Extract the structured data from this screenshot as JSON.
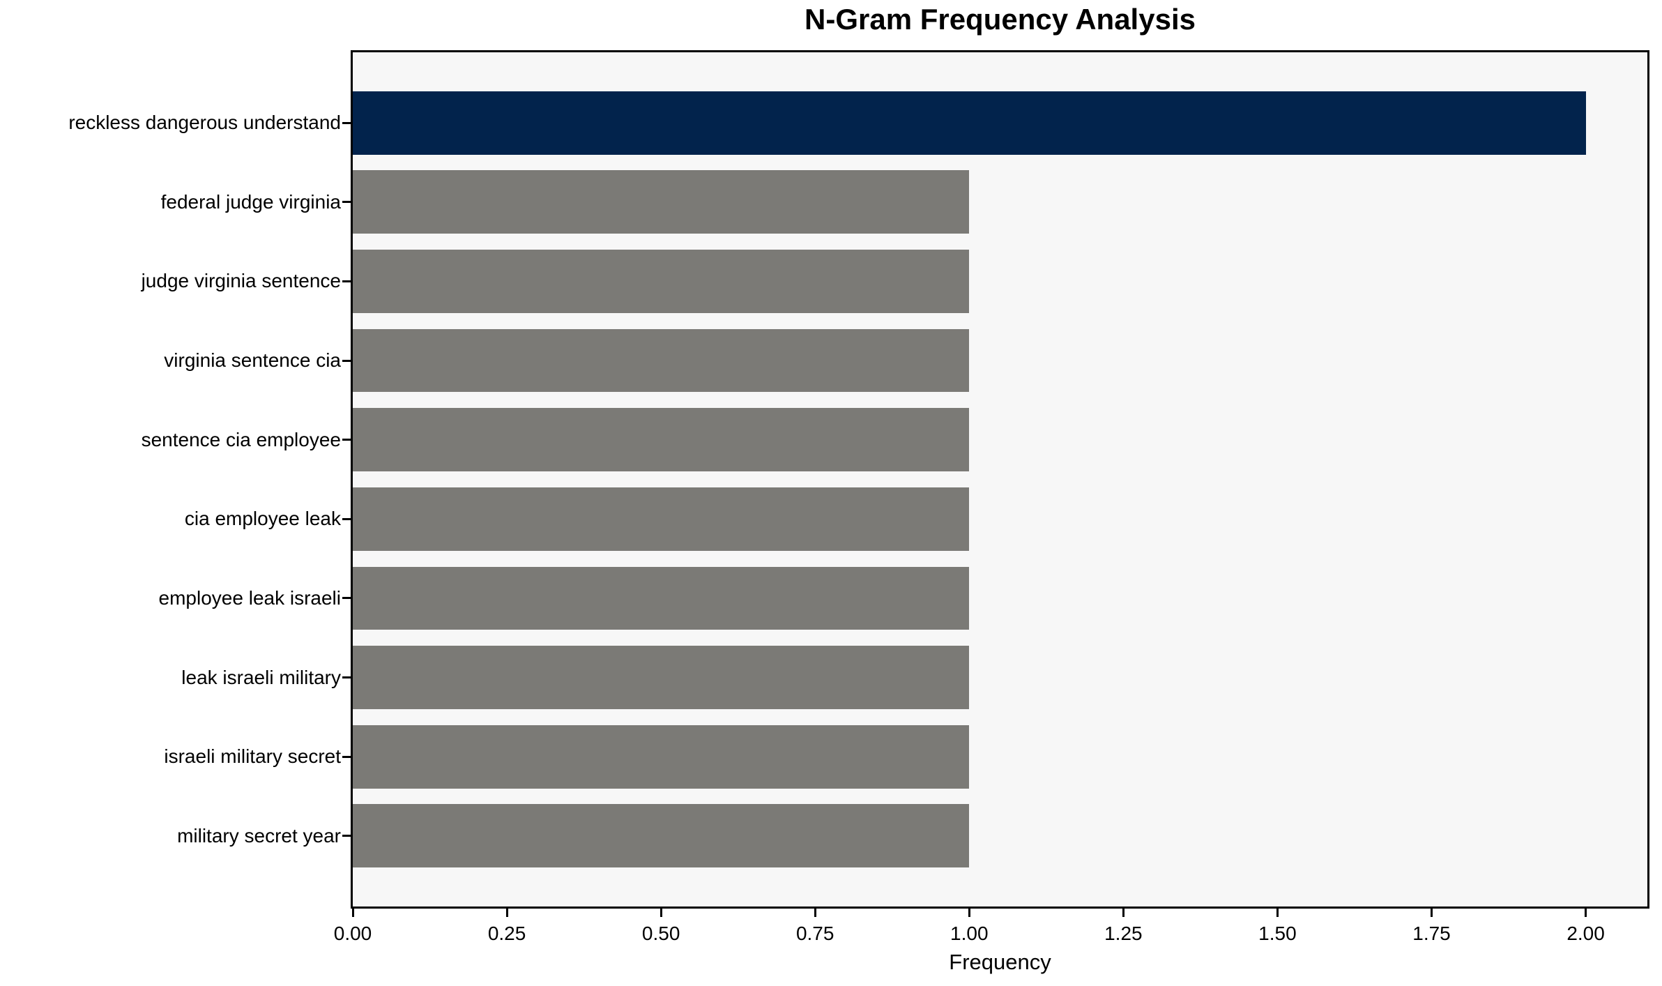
{
  "chart_data": {
    "type": "bar",
    "orientation": "horizontal",
    "title": "N-Gram Frequency Analysis",
    "xlabel": "Frequency",
    "ylabel": "",
    "categories": [
      "reckless dangerous understand",
      "federal judge virginia",
      "judge virginia sentence",
      "virginia sentence cia",
      "sentence cia employee",
      "cia employee leak",
      "employee leak israeli",
      "leak israeli military",
      "israeli military secret",
      "military secret year"
    ],
    "values": [
      2.0,
      1.0,
      1.0,
      1.0,
      1.0,
      1.0,
      1.0,
      1.0,
      1.0,
      1.0
    ],
    "bar_colors": [
      "#02234c",
      "#7b7a76",
      "#7b7a76",
      "#7b7a76",
      "#7b7a76",
      "#7b7a76",
      "#7b7a76",
      "#7b7a76",
      "#7b7a76",
      "#7b7a76"
    ],
    "xticks": [
      {
        "value": 0.0,
        "label": "0.00"
      },
      {
        "value": 0.25,
        "label": "0.25"
      },
      {
        "value": 0.5,
        "label": "0.50"
      },
      {
        "value": 0.75,
        "label": "0.75"
      },
      {
        "value": 1.0,
        "label": "1.00"
      },
      {
        "value": 1.25,
        "label": "1.25"
      },
      {
        "value": 1.5,
        "label": "1.50"
      },
      {
        "value": 1.75,
        "label": "1.75"
      },
      {
        "value": 2.0,
        "label": "2.00"
      }
    ],
    "xlim": [
      0,
      2.1
    ],
    "grid": false,
    "legend": "none",
    "y_axis": {
      "total_units": 10.78,
      "first_center_units": 0.89,
      "bar_height_units": 0.8
    },
    "colors": {
      "highlight_bar": "#02234c",
      "default_bar": "#7b7a76",
      "plot_background": "#f7f7f7",
      "figure_background": "#ffffff",
      "spine": "#000000",
      "text": "#000000"
    }
  }
}
